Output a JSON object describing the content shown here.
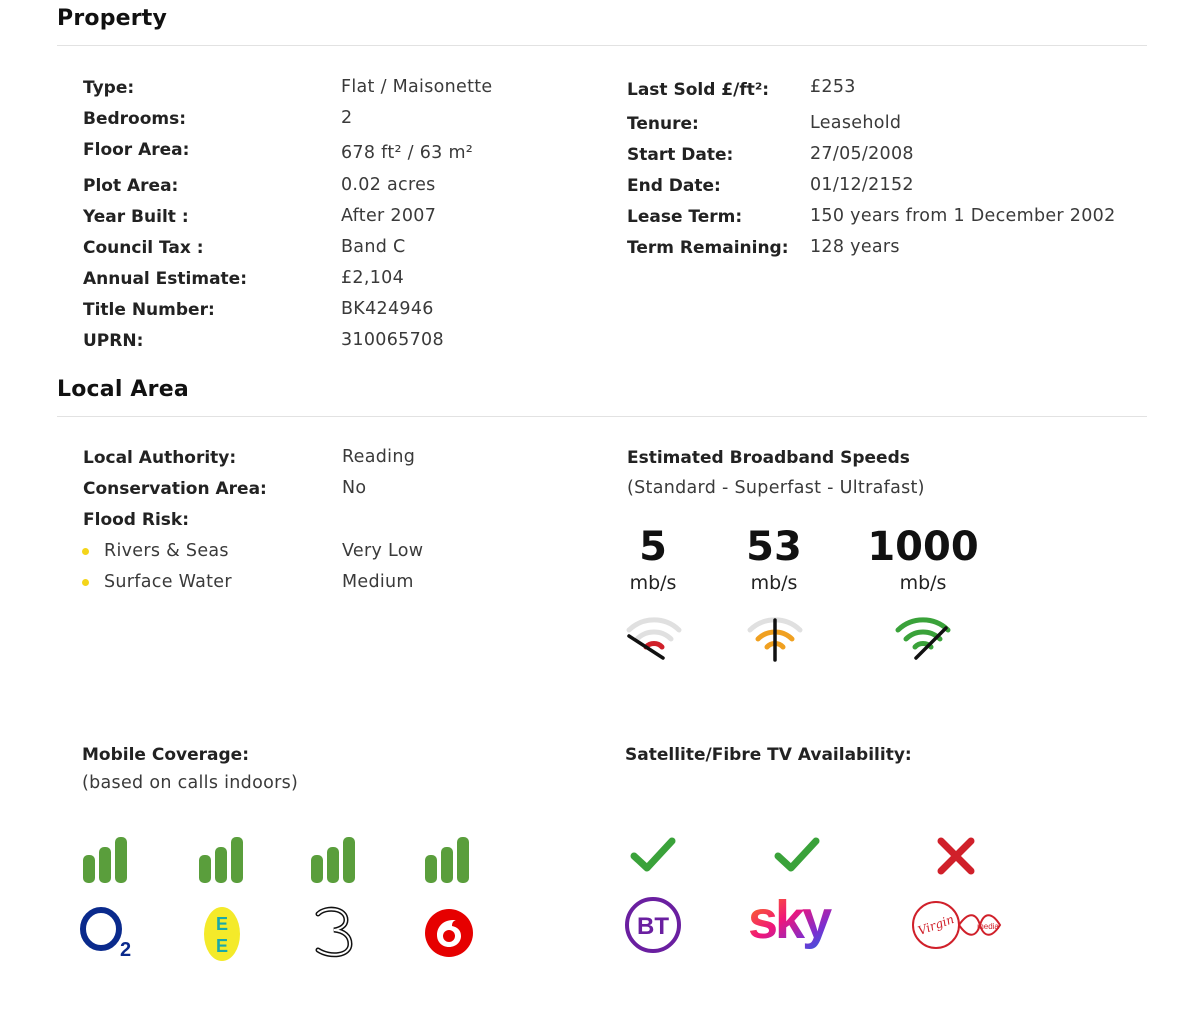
{
  "property": {
    "title": "Property",
    "left_rows": [
      {
        "label": "Type:",
        "value": "Flat / Maisonette"
      },
      {
        "label": "Bedrooms:",
        "value": "2"
      },
      {
        "label": "Floor Area:",
        "value": "678 ft² / 63 m²"
      },
      {
        "label": "Plot Area:",
        "value": "0.02 acres"
      },
      {
        "label": "Year Built :",
        "value": "After 2007"
      },
      {
        "label": "Council Tax :",
        "value": "Band C"
      },
      {
        "label": "Annual Estimate:",
        "value": "£2,104"
      },
      {
        "label": "Title Number:",
        "value": "BK424946"
      },
      {
        "label": "UPRN:",
        "value": "310065708"
      }
    ],
    "right_rows": [
      {
        "label": "Last Sold £/ft²:",
        "value": "£253"
      },
      {
        "label": "Tenure:",
        "value": "Leasehold"
      },
      {
        "label": "Start Date:",
        "value": "27/05/2008"
      },
      {
        "label": "End Date:",
        "value": "01/12/2152"
      },
      {
        "label": "Lease Term:",
        "value": "150 years from 1 December 2002"
      },
      {
        "label": "Term Remaining:",
        "value": "128 years"
      }
    ]
  },
  "local_area": {
    "title": "Local Area",
    "rows": [
      {
        "label": "Local Authority:",
        "value": "Reading"
      },
      {
        "label": "Conservation Area:",
        "value": "No"
      }
    ],
    "flood_label": "Flood Risk:",
    "flood_rows": [
      {
        "label": "Rivers & Seas",
        "value": "Very Low"
      },
      {
        "label": "Surface Water",
        "value": "Medium"
      }
    ],
    "broadband": {
      "title": "Estimated Broadband Speeds",
      "subtitle": "(Standard - Superfast - Ultrafast)",
      "speeds": [
        {
          "value": "5",
          "unit": "mb/s",
          "color": "#d0202a"
        },
        {
          "value": "53",
          "unit": "mb/s",
          "color": "#f0a020"
        },
        {
          "value": "1000",
          "unit": "mb/s",
          "color": "#3aa23a"
        }
      ]
    },
    "mobile": {
      "title": "Mobile Coverage:",
      "subtitle": "(based on calls indoors)",
      "signal_color": "#5a9e3c",
      "providers": [
        {
          "name": "O2",
          "logo": "o2-logo"
        },
        {
          "name": "EE",
          "logo": "ee-logo"
        },
        {
          "name": "3",
          "logo": "three-logo"
        },
        {
          "name": "Vodafone",
          "logo": "vodafone-logo"
        }
      ]
    },
    "tv": {
      "title": "Satellite/Fibre TV Availability:",
      "providers": [
        {
          "name": "BT",
          "available": true
        },
        {
          "name": "sky",
          "available": true
        },
        {
          "name": "Virgin media",
          "available": false
        }
      ],
      "check_color": "#3aa23a",
      "cross_color": "#d0202a"
    }
  }
}
